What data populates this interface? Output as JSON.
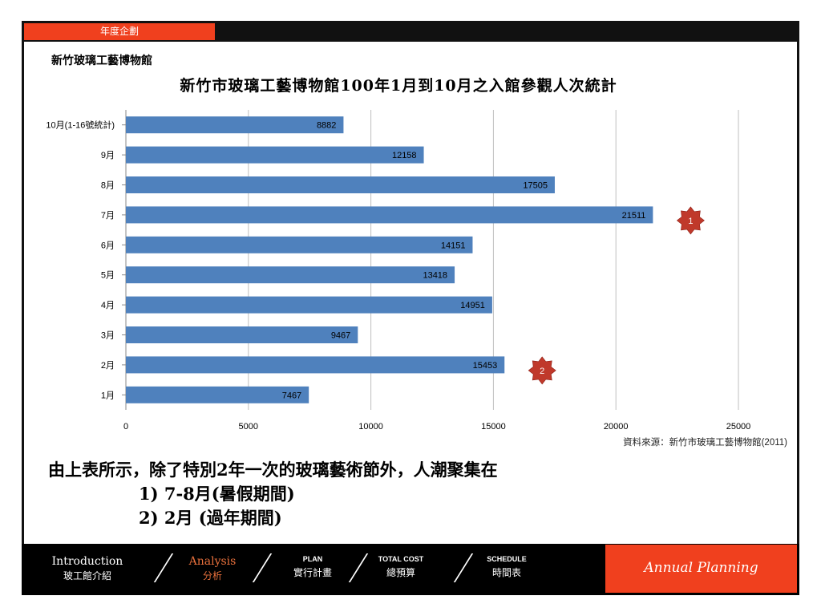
{
  "header": {
    "section_tab": "年度企劃"
  },
  "org_name": "新竹玻璃工藝博物館",
  "chart_data": {
    "type": "bar",
    "orientation": "horizontal",
    "title": "新竹市玻璃工藝博物館100年1月到10月之入館參觀人次統計",
    "categories": [
      "10月(1-16號統計)",
      "9月",
      "8月",
      "7月",
      "6月",
      "5月",
      "4月",
      "3月",
      "2月",
      "1月"
    ],
    "values": [
      8882,
      12158,
      17505,
      21511,
      14151,
      13418,
      14951,
      9467,
      15453,
      7467
    ],
    "xlim": [
      0,
      25000
    ],
    "xticks": [
      0,
      5000,
      10000,
      15000,
      20000,
      25000
    ],
    "grid": true,
    "bar_color": "#4f81bd",
    "annotations": [
      {
        "label": "1",
        "category": "7月"
      },
      {
        "label": "2",
        "category": "2月"
      }
    ],
    "badge_color": "#c0392b"
  },
  "source": "資料來源：新竹市玻璃工藝博物館(2011)",
  "summary": {
    "line1": "由上表所示，除了特別2年一次的玻璃藝術節外，人潮聚集在",
    "line2": "1) 7-8月(暑假期間)",
    "line3": "2) 2月  (過年期間)"
  },
  "footer": {
    "nav": [
      {
        "en": "Introduction",
        "zh": "玻工館介紹"
      },
      {
        "en": "Analysis",
        "zh": "分析"
      },
      {
        "en": "PLAN",
        "zh": "實行計畫"
      },
      {
        "en": "TOTAL COST",
        "zh": "總預算"
      },
      {
        "en": "SCHEDULE",
        "zh": "時間表"
      }
    ],
    "brand": "Annual Planning",
    "accent": "#f0401e"
  }
}
